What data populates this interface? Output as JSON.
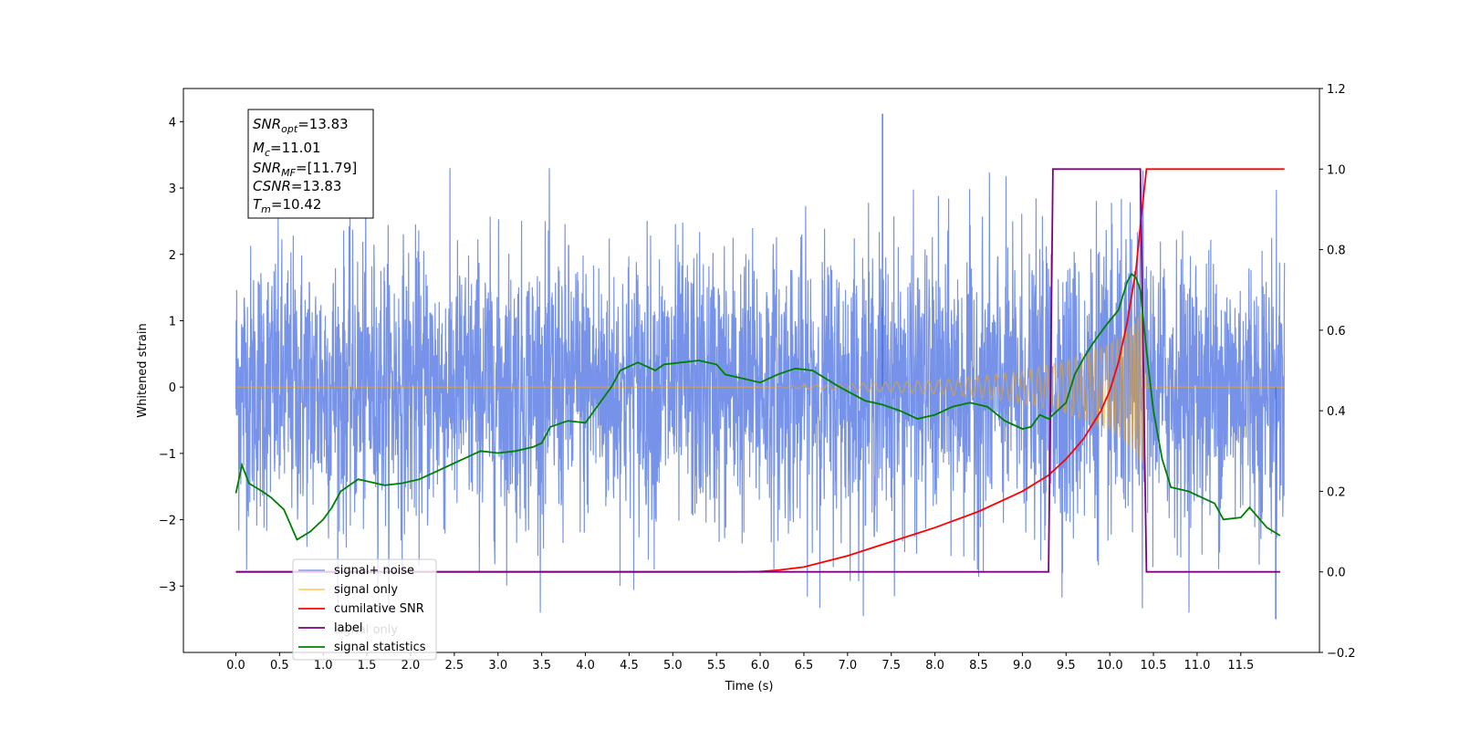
{
  "chart_data": {
    "type": "line",
    "xlabel": "Time (s)",
    "ylabel": "Whitened strain",
    "xlim": [
      -0.6,
      12.4
    ],
    "ylim": [
      -4,
      4.5
    ],
    "y2lim": [
      -0.2,
      1.2
    ],
    "xticks": [
      "0.0",
      "0.5",
      "1.0",
      "1.5",
      "2.0",
      "2.5",
      "3.0",
      "3.5",
      "4.0",
      "4.5",
      "5.0",
      "5.5",
      "6.0",
      "6.5",
      "7.0",
      "7.5",
      "8.0",
      "8.5",
      "9.0",
      "9.5",
      "10.0",
      "10.5",
      "11.0",
      "11.5"
    ],
    "yticks": [
      "−3",
      "−2",
      "−1",
      "0",
      "1",
      "2",
      "3",
      "4"
    ],
    "y2ticks": [
      "−0.2",
      "0.0",
      "0.2",
      "0.4",
      "0.6",
      "0.8",
      "1.0",
      "1.2"
    ],
    "legend_position": "lower-left",
    "legend": [
      {
        "label": "signal+ noise",
        "color": "#4169e1"
      },
      {
        "label": "signal only",
        "color": "#ffa500"
      },
      {
        "label": "cumilative SNR",
        "color": "#ff0000"
      },
      {
        "label": "label",
        "color": "#800080"
      },
      {
        "label": "signal statistics",
        "color": "#008000"
      }
    ],
    "hidden_legend_text": "signal only",
    "annotation": [
      {
        "var": "SNR",
        "sub": "opt",
        "value": "=13.83"
      },
      {
        "var": "M",
        "sub": "c",
        "value": "=11.01"
      },
      {
        "var": "SNR",
        "sub": "MF",
        "value": "=[11.79]"
      },
      {
        "var": "CSNR",
        "sub": "",
        "value": "=13.83"
      },
      {
        "var": "T",
        "sub": "m",
        "value": "=10.42"
      }
    ],
    "series": [
      {
        "name": "signal+ noise",
        "axis": "left",
        "color": "#4169e1",
        "description": "noise",
        "x_range": [
          0.0,
          12.0
        ],
        "amplitude_std": 1.0,
        "peak": {
          "x": 7.4,
          "y": 4.12
        },
        "min": {
          "x": 11.9,
          "y": -3.5
        }
      },
      {
        "name": "signal only",
        "axis": "left",
        "color": "#ffa500",
        "chirp_start": 6.0,
        "merger_time": 10.42,
        "envelope": [
          [
            6.0,
            0.0
          ],
          [
            7.0,
            0.05
          ],
          [
            8.0,
            0.1
          ],
          [
            8.5,
            0.16
          ],
          [
            9.0,
            0.24
          ],
          [
            9.5,
            0.4
          ],
          [
            10.0,
            0.65
          ],
          [
            10.2,
            0.85
          ],
          [
            10.3,
            1.0
          ],
          [
            10.38,
            1.2
          ],
          [
            10.42,
            0.0
          ],
          [
            12.0,
            0.0
          ]
        ]
      },
      {
        "name": "cumilative SNR",
        "axis": "right",
        "color": "#ff0000",
        "points": [
          [
            0.0,
            0.0
          ],
          [
            5.8,
            0.0
          ],
          [
            6.0,
            0.001
          ],
          [
            6.2,
            0.004
          ],
          [
            6.5,
            0.012
          ],
          [
            7.0,
            0.04
          ],
          [
            7.5,
            0.075
          ],
          [
            8.0,
            0.11
          ],
          [
            8.5,
            0.15
          ],
          [
            9.0,
            0.2
          ],
          [
            9.3,
            0.24
          ],
          [
            9.5,
            0.28
          ],
          [
            9.7,
            0.33
          ],
          [
            9.9,
            0.4
          ],
          [
            10.0,
            0.45
          ],
          [
            10.1,
            0.52
          ],
          [
            10.2,
            0.62
          ],
          [
            10.3,
            0.75
          ],
          [
            10.36,
            0.88
          ],
          [
            10.42,
            1.0
          ],
          [
            12.0,
            1.0
          ]
        ]
      },
      {
        "name": "label",
        "axis": "right",
        "color": "#800080",
        "points": [
          [
            0.0,
            0.0
          ],
          [
            9.3,
            0.0
          ],
          [
            9.35,
            1.0
          ],
          [
            10.35,
            1.0
          ],
          [
            10.42,
            0.0
          ],
          [
            11.95,
            0.0
          ]
        ]
      },
      {
        "name": "signal statistics",
        "axis": "right",
        "color": "#008000",
        "points": [
          [
            0.0,
            0.195
          ],
          [
            0.07,
            0.265
          ],
          [
            0.15,
            0.22
          ],
          [
            0.3,
            0.2
          ],
          [
            0.4,
            0.185
          ],
          [
            0.55,
            0.155
          ],
          [
            0.7,
            0.08
          ],
          [
            0.85,
            0.1
          ],
          [
            1.0,
            0.13
          ],
          [
            1.1,
            0.16
          ],
          [
            1.2,
            0.2
          ],
          [
            1.3,
            0.215
          ],
          [
            1.4,
            0.23
          ],
          [
            1.5,
            0.225
          ],
          [
            1.7,
            0.215
          ],
          [
            1.9,
            0.22
          ],
          [
            2.1,
            0.23
          ],
          [
            2.3,
            0.25
          ],
          [
            2.5,
            0.27
          ],
          [
            2.7,
            0.29
          ],
          [
            2.8,
            0.3
          ],
          [
            3.0,
            0.295
          ],
          [
            3.2,
            0.3
          ],
          [
            3.4,
            0.31
          ],
          [
            3.5,
            0.32
          ],
          [
            3.6,
            0.36
          ],
          [
            3.8,
            0.375
          ],
          [
            4.0,
            0.37
          ],
          [
            4.1,
            0.4
          ],
          [
            4.3,
            0.46
          ],
          [
            4.4,
            0.5
          ],
          [
            4.6,
            0.52
          ],
          [
            4.8,
            0.5
          ],
          [
            4.9,
            0.515
          ],
          [
            5.1,
            0.52
          ],
          [
            5.3,
            0.525
          ],
          [
            5.5,
            0.515
          ],
          [
            5.6,
            0.49
          ],
          [
            5.8,
            0.48
          ],
          [
            6.0,
            0.47
          ],
          [
            6.2,
            0.49
          ],
          [
            6.4,
            0.505
          ],
          [
            6.6,
            0.5
          ],
          [
            6.9,
            0.46
          ],
          [
            7.2,
            0.425
          ],
          [
            7.4,
            0.415
          ],
          [
            7.6,
            0.4
          ],
          [
            7.8,
            0.38
          ],
          [
            8.0,
            0.39
          ],
          [
            8.2,
            0.41
          ],
          [
            8.4,
            0.42
          ],
          [
            8.6,
            0.41
          ],
          [
            8.8,
            0.375
          ],
          [
            9.0,
            0.355
          ],
          [
            9.1,
            0.36
          ],
          [
            9.2,
            0.39
          ],
          [
            9.3,
            0.38
          ],
          [
            9.5,
            0.42
          ],
          [
            9.6,
            0.49
          ],
          [
            9.7,
            0.53
          ],
          [
            9.8,
            0.565
          ],
          [
            9.95,
            0.61
          ],
          [
            10.1,
            0.65
          ],
          [
            10.2,
            0.72
          ],
          [
            10.25,
            0.74
          ],
          [
            10.3,
            0.73
          ],
          [
            10.35,
            0.7
          ],
          [
            10.42,
            0.55
          ],
          [
            10.5,
            0.4
          ],
          [
            10.6,
            0.28
          ],
          [
            10.7,
            0.21
          ],
          [
            10.9,
            0.2
          ],
          [
            11.0,
            0.19
          ],
          [
            11.2,
            0.17
          ],
          [
            11.3,
            0.13
          ],
          [
            11.5,
            0.135
          ],
          [
            11.6,
            0.16
          ],
          [
            11.8,
            0.11
          ],
          [
            11.95,
            0.09
          ]
        ]
      }
    ]
  }
}
